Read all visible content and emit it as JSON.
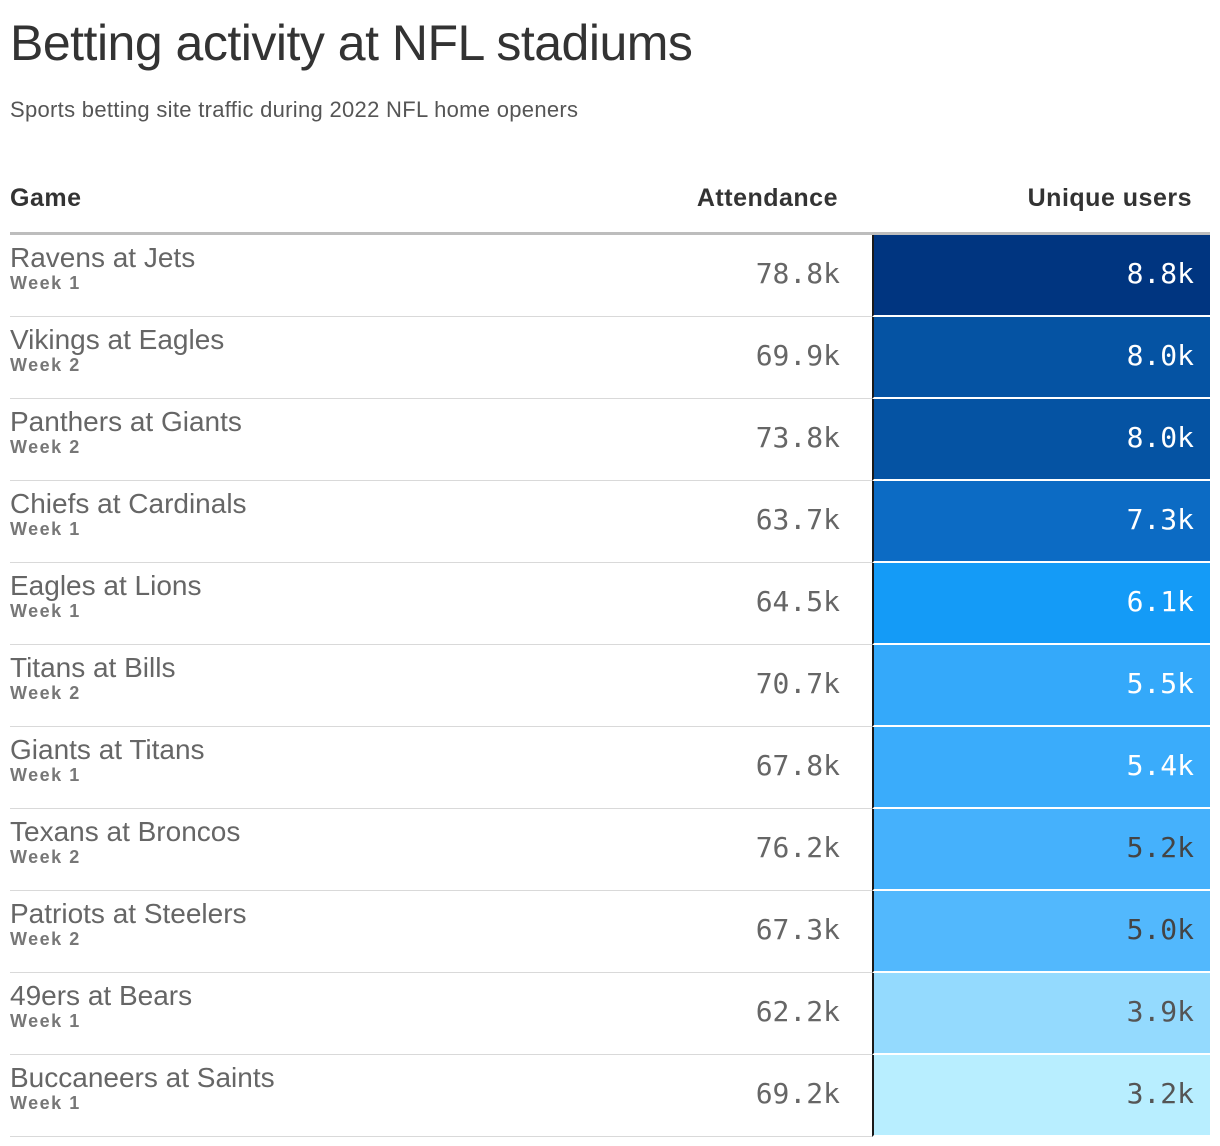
{
  "title": "Betting activity at NFL stadiums",
  "subtitle": "Sports betting site traffic during 2022 NFL home openers",
  "columns": {
    "game": "Game",
    "attendance": "Attendance",
    "users": "Unique users"
  },
  "chart_data": {
    "type": "table",
    "title": "Betting activity at NFL stadiums",
    "subtitle": "Sports betting site traffic during 2022 NFL home openers",
    "columns": [
      "Game",
      "Attendance",
      "Unique users"
    ],
    "rows": [
      {
        "game": "Ravens at Jets",
        "week": "Week 1",
        "attendance": "78.8k",
        "users": "8.8k",
        "users_value": 8.8,
        "color": "#003580",
        "text_color": "#ffffff"
      },
      {
        "game": "Vikings at Eagles",
        "week": "Week 2",
        "attendance": "69.9k",
        "users": "8.0k",
        "users_value": 8.0,
        "color": "#0553a3",
        "text_color": "#ffffff"
      },
      {
        "game": "Panthers at Giants",
        "week": "Week 2",
        "attendance": "73.8k",
        "users": "8.0k",
        "users_value": 8.0,
        "color": "#0553a3",
        "text_color": "#ffffff"
      },
      {
        "game": "Chiefs at Cardinals",
        "week": "Week 1",
        "attendance": "63.7k",
        "users": "7.3k",
        "users_value": 7.3,
        "color": "#0c6bc4",
        "text_color": "#ffffff"
      },
      {
        "game": "Eagles at Lions",
        "week": "Week 1",
        "attendance": "64.5k",
        "users": "6.1k",
        "users_value": 6.1,
        "color": "#149bf7",
        "text_color": "#ffffff"
      },
      {
        "game": "Titans at Bills",
        "week": "Week 2",
        "attendance": "70.7k",
        "users": "5.5k",
        "users_value": 5.5,
        "color": "#34a9fa",
        "text_color": "#ffffff"
      },
      {
        "game": "Giants at Titans",
        "week": "Week 1",
        "attendance": "67.8k",
        "users": "5.4k",
        "users_value": 5.4,
        "color": "#3aacfb",
        "text_color": "#ffffff"
      },
      {
        "game": "Texans at Broncos",
        "week": "Week 2",
        "attendance": "76.2k",
        "users": "5.2k",
        "users_value": 5.2,
        "color": "#45b1fc",
        "text_color": "#444444"
      },
      {
        "game": "Patriots at Steelers",
        "week": "Week 2",
        "attendance": "67.3k",
        "users": "5.0k",
        "users_value": 5.0,
        "color": "#52b8fd",
        "text_color": "#444444"
      },
      {
        "game": "49ers at Bears",
        "week": "Week 1",
        "attendance": "62.2k",
        "users": "3.9k",
        "users_value": 3.9,
        "color": "#94dafe",
        "text_color": "#555555"
      },
      {
        "game": "Buccaneers at Saints",
        "week": "Week 1",
        "attendance": "69.2k",
        "users": "3.2k",
        "users_value": 3.2,
        "color": "#b8eeff",
        "text_color": "#555555"
      }
    ]
  }
}
